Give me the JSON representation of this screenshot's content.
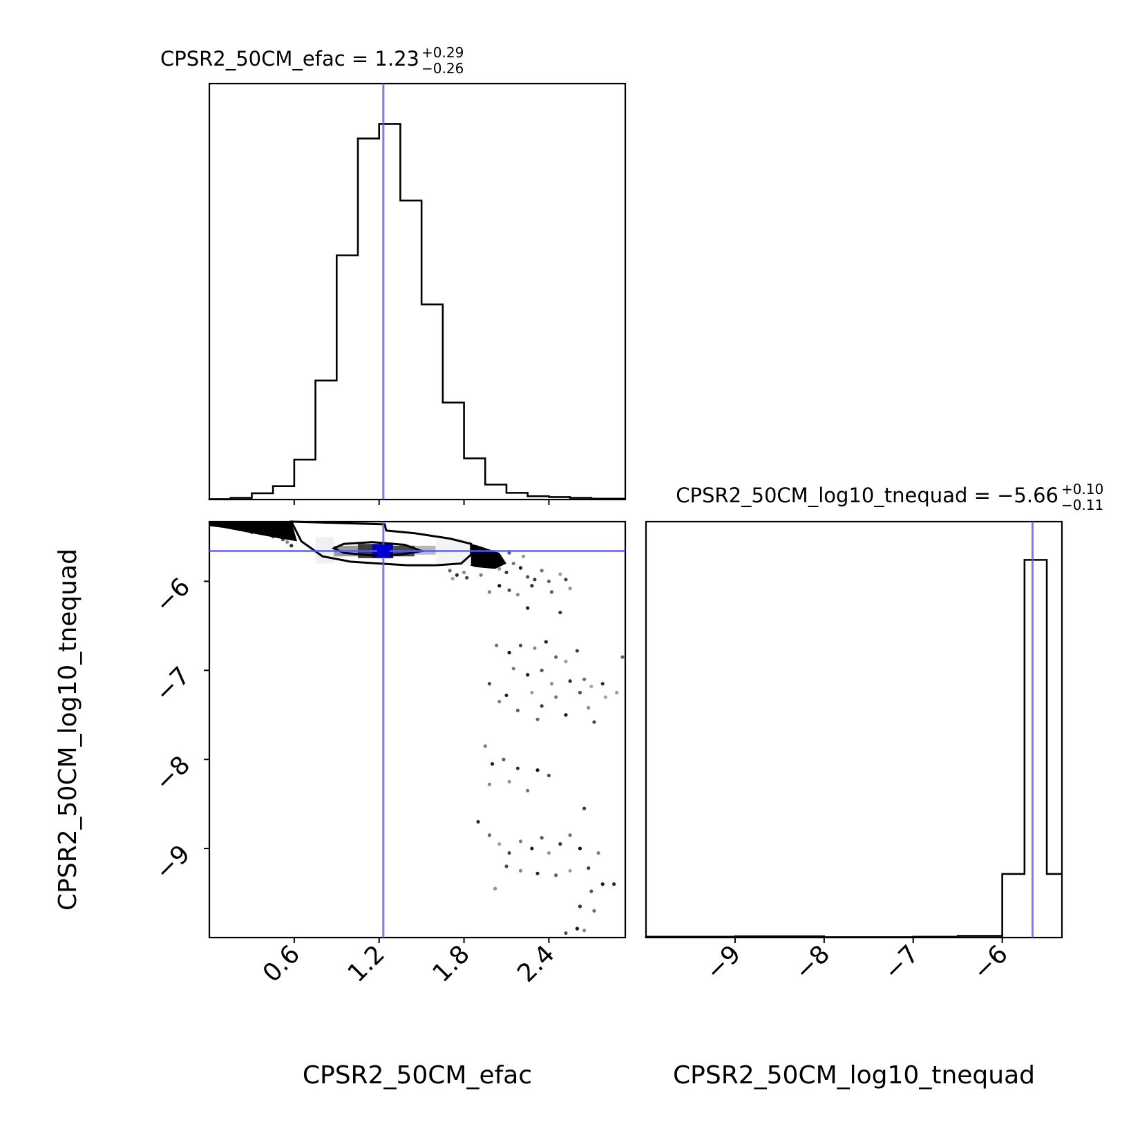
{
  "chart_data": {
    "type": "corner",
    "parameters": [
      "CPSR2_50CM_efac",
      "CPSR2_50CM_log10_tnequad"
    ],
    "truth_color": "#5a5af0",
    "panels": {
      "efac_hist": {
        "title": {
          "param": "CPSR2_50CM_efac",
          "value": "1.23",
          "plus": "+0.29",
          "minus": "−0.26"
        },
        "median": 1.23,
        "xlim": [
          0.0,
          2.94
        ],
        "bin_edges": [
          0.0,
          0.15,
          0.3,
          0.45,
          0.6,
          0.75,
          0.9,
          1.05,
          1.2,
          1.35,
          1.5,
          1.65,
          1.8,
          1.95,
          2.1,
          2.25,
          2.4,
          2.55,
          2.7,
          2.94
        ],
        "counts": [
          0.001,
          0.004,
          0.015,
          0.032,
          0.096,
          0.286,
          0.587,
          0.868,
          0.903,
          0.719,
          0.469,
          0.233,
          0.099,
          0.036,
          0.016,
          0.008,
          0.006,
          0.004,
          0.002
        ]
      },
      "tnequad_hist": {
        "title": {
          "param": "CPSR2_50CM_log10_tnequad",
          "value": "−5.66",
          "plus": "+0.10",
          "minus": "−0.11"
        },
        "median": -5.66,
        "xlim": [
          -10.0,
          -5.33
        ],
        "bin_edges": [
          -10.0,
          -9.0,
          -8.0,
          -7.0,
          -6.5,
          -6.0,
          -5.75,
          -5.5,
          -5.33
        ],
        "counts": [
          0.002,
          0.003,
          0.001,
          0.002,
          0.004,
          0.153,
          0.908,
          0.153
        ],
        "xticks": [
          -9,
          -8,
          -7,
          -6
        ],
        "xtick_labels": [
          "−9",
          "−8",
          "−7",
          "−6"
        ]
      },
      "joint": {
        "xlim": [
          0.0,
          2.94
        ],
        "ylim": [
          -10.0,
          -5.33
        ],
        "truth": {
          "x": 1.23,
          "y": -5.66
        },
        "contour_outer": [
          [
            0.58,
            -5.33
          ],
          [
            0.65,
            -5.55
          ],
          [
            0.8,
            -5.72
          ],
          [
            1.0,
            -5.78
          ],
          [
            1.2,
            -5.8
          ],
          [
            1.4,
            -5.82
          ],
          [
            1.6,
            -5.82
          ],
          [
            1.78,
            -5.8
          ],
          [
            1.85,
            -5.7
          ],
          [
            1.85,
            -5.58
          ],
          [
            1.7,
            -5.52
          ],
          [
            1.45,
            -5.46
          ],
          [
            1.25,
            -5.43
          ],
          [
            1.24,
            -5.36
          ]
        ],
        "contour_inner": [
          [
            0.88,
            -5.63
          ],
          [
            0.95,
            -5.68
          ],
          [
            1.15,
            -5.71
          ],
          [
            1.35,
            -5.7
          ],
          [
            1.5,
            -5.66
          ],
          [
            1.38,
            -5.59
          ],
          [
            1.15,
            -5.56
          ],
          [
            0.95,
            -5.58
          ]
        ],
        "density_cells": [
          {
            "x": [
              0.88,
              1.05
            ],
            "y": [
              -5.72,
              -5.6
            ],
            "shade": "#9a9a9a"
          },
          {
            "x": [
              1.05,
              1.15
            ],
            "y": [
              -5.74,
              -5.58
            ],
            "shade": "#3c3c3c"
          },
          {
            "x": [
              1.15,
              1.3
            ],
            "y": [
              -5.74,
              -5.58
            ],
            "shade": "#0000c8"
          },
          {
            "x": [
              1.3,
              1.45
            ],
            "y": [
              -5.72,
              -5.6
            ],
            "shade": "#4a4a4a"
          },
          {
            "x": [
              1.45,
              1.6
            ],
            "y": [
              -5.7,
              -5.6
            ],
            "shade": "#b8b8b8"
          },
          {
            "x": [
              0.75,
              0.88
            ],
            "y": [
              -5.8,
              -5.5
            ],
            "shade": "#f0f0f0"
          },
          {
            "x": [
              1.6,
              1.85
            ],
            "y": [
              -5.82,
              -5.52
            ],
            "shade": "#f4f4f4"
          }
        ],
        "scatter_points": [
          [
            0.05,
            -5.36
          ],
          [
            0.12,
            -5.38
          ],
          [
            0.18,
            -5.4
          ],
          [
            0.25,
            -5.42
          ],
          [
            0.3,
            -5.45
          ],
          [
            0.35,
            -5.43
          ],
          [
            0.4,
            -5.47
          ],
          [
            0.45,
            -5.5
          ],
          [
            0.48,
            -5.45
          ],
          [
            0.52,
            -5.53
          ],
          [
            0.55,
            -5.56
          ],
          [
            0.58,
            -5.6
          ],
          [
            0.2,
            -5.35
          ],
          [
            0.38,
            -5.38
          ],
          [
            1.85,
            -5.62
          ],
          [
            1.9,
            -5.7
          ],
          [
            1.95,
            -5.78
          ],
          [
            2.0,
            -5.82
          ],
          [
            2.05,
            -5.86
          ],
          [
            2.1,
            -5.9
          ],
          [
            2.15,
            -5.8
          ],
          [
            2.2,
            -5.85
          ],
          [
            2.25,
            -5.95
          ],
          [
            1.8,
            -5.9
          ],
          [
            1.75,
            -5.93
          ],
          [
            1.7,
            -5.88
          ],
          [
            1.72,
            -5.97
          ],
          [
            1.82,
            -5.96
          ],
          [
            1.92,
            -5.93
          ],
          [
            2.02,
            -5.74
          ],
          [
            2.12,
            -5.68
          ],
          [
            2.22,
            -5.72
          ],
          [
            2.3,
            -5.98
          ],
          [
            2.35,
            -5.88
          ],
          [
            2.05,
            -6.05
          ],
          [
            2.12,
            -6.1
          ],
          [
            2.18,
            -6.15
          ],
          [
            2.28,
            -6.05
          ],
          [
            2.4,
            -6.0
          ],
          [
            2.48,
            -5.92
          ],
          [
            2.52,
            -5.98
          ],
          [
            1.98,
            -6.12
          ],
          [
            2.25,
            -6.3
          ],
          [
            2.42,
            -6.12
          ],
          [
            2.55,
            -6.08
          ],
          [
            2.48,
            -6.35
          ],
          [
            2.03,
            -6.72
          ],
          [
            2.12,
            -6.8
          ],
          [
            2.2,
            -6.72
          ],
          [
            2.3,
            -6.75
          ],
          [
            2.38,
            -6.68
          ],
          [
            2.45,
            -6.85
          ],
          [
            2.52,
            -6.9
          ],
          [
            2.6,
            -6.78
          ],
          [
            2.15,
            -6.98
          ],
          [
            2.25,
            -7.05
          ],
          [
            2.35,
            -7.0
          ],
          [
            2.42,
            -7.15
          ],
          [
            2.55,
            -7.12
          ],
          [
            2.65,
            -7.1
          ],
          [
            2.7,
            -7.18
          ],
          [
            1.98,
            -7.15
          ],
          [
            2.05,
            -7.35
          ],
          [
            2.1,
            -7.28
          ],
          [
            2.18,
            -7.45
          ],
          [
            2.28,
            -7.25
          ],
          [
            2.35,
            -7.4
          ],
          [
            2.45,
            -7.3
          ],
          [
            2.52,
            -7.5
          ],
          [
            2.62,
            -7.25
          ],
          [
            2.68,
            -7.42
          ],
          [
            2.78,
            -7.15
          ],
          [
            2.32,
            -7.55
          ],
          [
            2.8,
            -7.3
          ],
          [
            2.72,
            -7.58
          ],
          [
            1.95,
            -7.85
          ],
          [
            2.0,
            -8.05
          ],
          [
            2.08,
            -8.0
          ],
          [
            2.12,
            -8.25
          ],
          [
            2.18,
            -8.1
          ],
          [
            2.25,
            -8.35
          ],
          [
            2.32,
            -8.12
          ],
          [
            2.4,
            -8.18
          ],
          [
            1.98,
            -8.28
          ],
          [
            1.9,
            -8.7
          ],
          [
            1.98,
            -8.85
          ],
          [
            2.05,
            -8.95
          ],
          [
            2.12,
            -9.05
          ],
          [
            2.2,
            -8.92
          ],
          [
            2.28,
            -9.0
          ],
          [
            2.35,
            -8.88
          ],
          [
            2.4,
            -9.05
          ],
          [
            2.48,
            -8.95
          ],
          [
            2.55,
            -8.85
          ],
          [
            2.62,
            -9.0
          ],
          [
            2.1,
            -9.2
          ],
          [
            2.2,
            -9.25
          ],
          [
            2.32,
            -9.28
          ],
          [
            2.45,
            -9.3
          ],
          [
            2.55,
            -9.25
          ],
          [
            2.68,
            -9.22
          ],
          [
            2.75,
            -9.05
          ],
          [
            2.78,
            -9.4
          ],
          [
            2.7,
            -9.48
          ],
          [
            2.02,
            -9.45
          ],
          [
            2.62,
            -9.65
          ],
          [
            2.72,
            -9.7
          ],
          [
            2.6,
            -9.9
          ],
          [
            2.52,
            -9.95
          ],
          [
            2.65,
            -9.92
          ],
          [
            2.86,
            -9.4
          ],
          [
            2.92,
            -6.85
          ],
          [
            2.88,
            -7.25
          ],
          [
            2.65,
            -8.55
          ]
        ],
        "yticks": [
          -9,
          -8,
          -7,
          -6
        ],
        "ytick_labels": [
          "−9",
          "−8",
          "−7",
          "−6"
        ],
        "xticks": [
          0.6,
          1.2,
          1.8,
          2.4
        ],
        "xtick_labels": [
          "0.6",
          "1.2",
          "1.8",
          "2.4"
        ]
      }
    },
    "xlabels": [
      "CPSR2_50CM_efac",
      "CPSR2_50CM_log10_tnequad"
    ],
    "ylabel": "CPSR2_50CM_log10_tnequad"
  }
}
